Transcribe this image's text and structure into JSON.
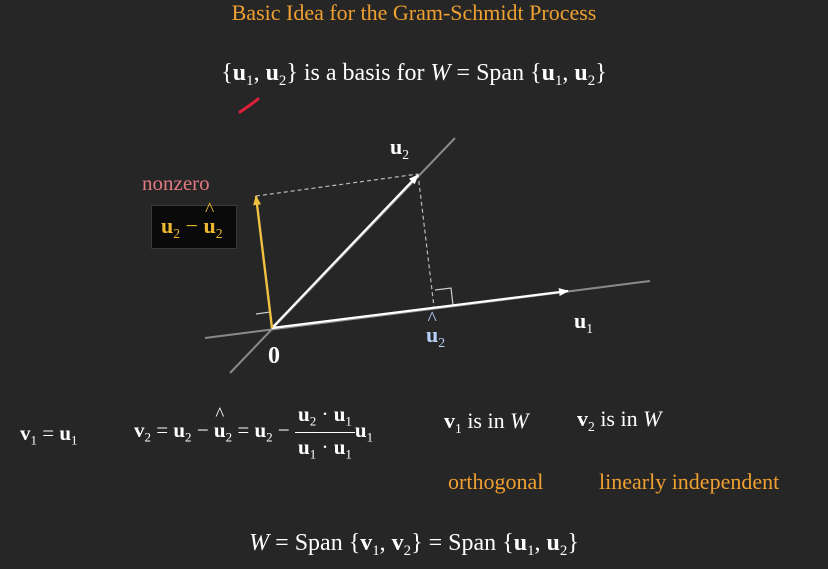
{
  "title": "Basic Idea for the Gram-Schmidt Process",
  "basis": {
    "open": "{",
    "u": "u",
    "s1": "1",
    "comma": ", ",
    "s2": "2",
    "close": "}",
    "text": " is a basis for ",
    "W": "W",
    "eq": " = Span ",
    "open2": "{",
    "close2": "}"
  },
  "diagram": {
    "nonzero": "nonzero",
    "box_u": "u",
    "box_s": "2",
    "box_minus": " − ",
    "box_s2": "2",
    "u2_label": "u",
    "u2_sub": "2",
    "u1_label": "u",
    "u1_sub": "1",
    "u2hat_label": "u",
    "u2hat_sub": "2",
    "origin": "0"
  },
  "formulas": {
    "v1_v": "v",
    "v1_s": "1",
    "v1_eq": " = ",
    "v1_u": "u",
    "v1_us": "1",
    "v2_v": "v",
    "v2_s": "2",
    "eq": " = ",
    "minus": " − ",
    "u": "u",
    "s1": "1",
    "s2": "2",
    "dot": " · ",
    "v1inW_v": "v",
    "v1inW_s": "1",
    "in_text": " is in ",
    "W": "W",
    "v2inW_v": "v",
    "v2inW_s": "2"
  },
  "notes": {
    "orthogonal": "orthogonal",
    "independent": "linearly independent"
  },
  "bottom": {
    "W": "W",
    "eq": " = Span ",
    "open": "{",
    "v": "v",
    "s1": "1",
    "comma": ", ",
    "s2": "2",
    "close": "}",
    "eq2": " = Span ",
    "u": "u"
  },
  "colors": {
    "title": "#f0a030",
    "yellow_vector": "#f0c040",
    "nonzero": "#e07880",
    "hat": "#b8d0f8",
    "accent_red": "#e0203a"
  }
}
